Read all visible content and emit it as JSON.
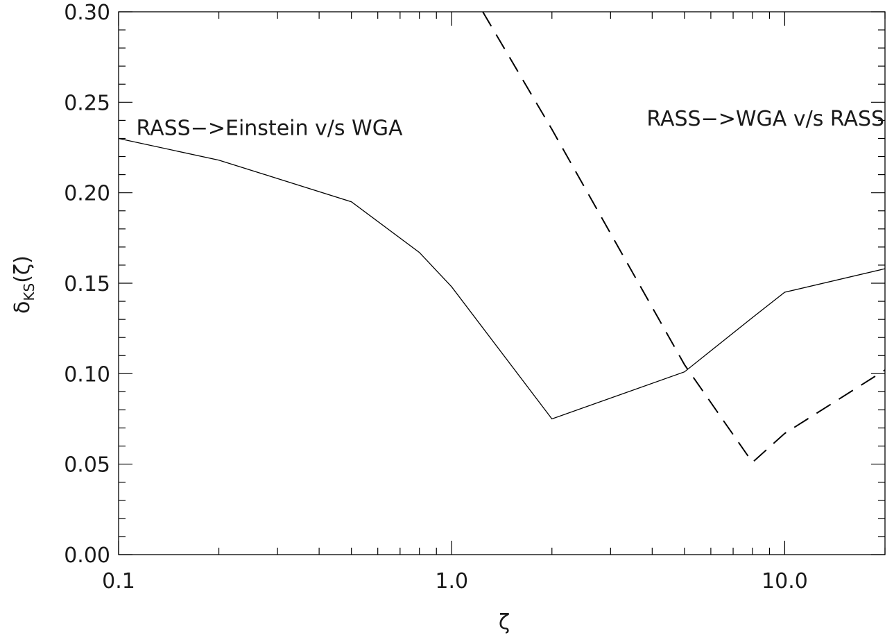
{
  "chart_data": {
    "type": "line",
    "title": "",
    "xlabel": "ζ",
    "ylabel": "δ_KS(ζ)",
    "ylabel_main": "δ",
    "ylabel_sub": "KS",
    "ylabel_arg": "(ζ)",
    "xscale": "log",
    "xlim": [
      0.1,
      20
    ],
    "ylim": [
      0.0,
      0.3
    ],
    "x_ticks": [
      {
        "value": 0.1,
        "label": "0.1"
      },
      {
        "value": 1.0,
        "label": "1.0"
      },
      {
        "value": 10.0,
        "label": "10.0"
      }
    ],
    "y_ticks": [
      {
        "value": 0.0,
        "label": "0.00"
      },
      {
        "value": 0.05,
        "label": "0.05"
      },
      {
        "value": 0.1,
        "label": "0.10"
      },
      {
        "value": 0.15,
        "label": "0.15"
      },
      {
        "value": 0.2,
        "label": "0.20"
      },
      {
        "value": 0.25,
        "label": "0.25"
      },
      {
        "value": 0.3,
        "label": "0.30"
      }
    ],
    "grid": false,
    "series": [
      {
        "style": "solid",
        "color": "#000000",
        "x": [
          0.1,
          0.2,
          0.5,
          0.8,
          1.0,
          2.0,
          5.0,
          8.0,
          10.0,
          20.0
        ],
        "y": [
          0.23,
          0.218,
          0.195,
          0.167,
          0.148,
          0.075,
          0.101,
          0.131,
          0.145,
          0.158
        ]
      },
      {
        "style": "dashed",
        "color": "#000000",
        "x": [
          1.24,
          2.0,
          5.0,
          8.0,
          10.0,
          20.0
        ],
        "y": [
          0.3,
          0.235,
          0.105,
          0.051,
          0.067,
          0.102
        ]
      }
    ],
    "annotations": [
      {
        "text": "RASS−>Einstein v/s WGA",
        "x": 0.113,
        "y": 0.232
      },
      {
        "text": "RASS−>WGA v/s RASS",
        "x": 3.85,
        "y": 0.237
      }
    ]
  }
}
